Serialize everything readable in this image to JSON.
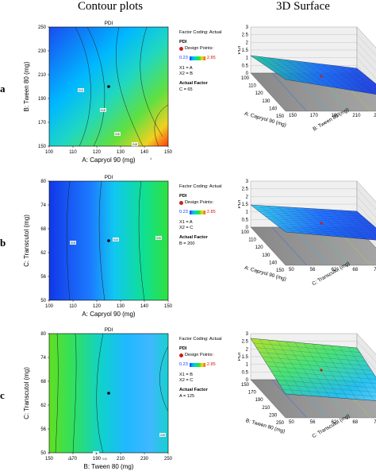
{
  "headers": {
    "left": "Contour plots",
    "right": "3D Surface"
  },
  "rows": [
    {
      "label": "a",
      "panel_title": "PDI",
      "info": {
        "coding": "Factor Coding: Actual",
        "response": "PDI",
        "design_points": "Design Points:",
        "cmin": "0.23",
        "cmax": "2.85",
        "x1": "X1 = A",
        "x2": "X2 = B",
        "actual_factor": "Actual Factor",
        "factor_value": "C = 65"
      },
      "xlabel": "A: Capryol 90 (mg)",
      "ylabel": "B: Tween 80 (mg)",
      "xticks": [
        "100",
        "110",
        "120",
        "130",
        "140",
        "150"
      ],
      "yticks": [
        "150",
        "170",
        "190",
        "210",
        "230",
        "250"
      ],
      "contour_labels": [
        "0.2",
        "0.4",
        "0.6",
        "0.8",
        "1",
        "1.2"
      ],
      "surf_zlabel": "PDI",
      "surf_zticks": [
        "0",
        "0.5",
        "1",
        "1.5",
        "2",
        "2.5",
        "3"
      ],
      "surf_x_label": "A: Capryol 90 (mg)",
      "surf_x_ticks": [
        "100",
        "110",
        "120",
        "130",
        "140",
        "150"
      ],
      "surf_y_label": "B: Tween 80 (mg)",
      "surf_y_ticks": [
        "150",
        "170",
        "190",
        "210",
        "230",
        "250"
      ]
    },
    {
      "label": "b",
      "panel_title": "PDI",
      "info": {
        "coding": "Factor Coding: Actual",
        "response": "PDI",
        "design_points": "Design Points:",
        "cmin": "0.23",
        "cmax": "2.85",
        "x1": "X1 = A",
        "x2": "X2 = C",
        "actual_factor": "Actual Factor",
        "factor_value": "B = 200"
      },
      "xlabel": "A: Capryol 90 (mg)",
      "ylabel": "C: Transcutol (mg)",
      "xticks": [
        "100",
        "110",
        "120",
        "130",
        "140",
        "150"
      ],
      "yticks": [
        "50",
        "56",
        "62",
        "68",
        "74",
        "80"
      ],
      "contour_labels": [
        "0.3",
        "0.4",
        "0.5"
      ],
      "surf_zlabel": "PDI",
      "surf_zticks": [
        "0",
        "0.5",
        "1",
        "1.5",
        "2",
        "2.5",
        "3"
      ],
      "surf_x_label": "A: Capryol 90 (mg)",
      "surf_x_ticks": [
        "100",
        "110",
        "120",
        "130",
        "140",
        "150"
      ],
      "surf_y_label": "C: Transcutol (mg)",
      "surf_y_ticks": [
        "50",
        "56",
        "62",
        "68",
        "74",
        "80"
      ]
    },
    {
      "label": "c",
      "panel_title": "PDI",
      "info": {
        "coding": "Factor Coding: Actual",
        "response": "PDI",
        "design_points": "Design Points:",
        "cmin": "0.23",
        "cmax": "2.85",
        "x1": "X1 = B",
        "x2": "X2 = C",
        "actual_factor": "Actual Factor",
        "factor_value": "A = 125"
      },
      "xlabel": "B: Tween 80 (mg)",
      "ylabel": "C: Transcutol (mg)",
      "xticks": [
        "150",
        "170",
        "190",
        "210",
        "230",
        "250"
      ],
      "yticks": [
        "50",
        "56",
        "62",
        "68",
        "74",
        "80"
      ],
      "contour_labels": [
        "1.5",
        "1",
        "0.5",
        "0.5"
      ],
      "surf_zlabel": "PDI",
      "surf_zticks": [
        "0",
        "0.5",
        "1",
        "1.5",
        "2",
        "2.5",
        "3"
      ],
      "surf_x_label": "B: Tween 80 (mg)",
      "surf_x_ticks": [
        "150",
        "170",
        "190",
        "210",
        "230",
        "250"
      ],
      "surf_y_label": "C: Transcutol (mg)",
      "surf_y_ticks": [
        "50",
        "56",
        "62",
        "68",
        "74",
        "80"
      ]
    }
  ],
  "colors": {
    "low": "#1a3cff",
    "mid": "#00c8e0",
    "green": "#30e030",
    "high": "#ff5010",
    "design_point": "#c8201c",
    "floor": "#808080"
  },
  "chart_data": [
    {
      "type": "heatmap",
      "title": "PDI",
      "xlabel": "A: Capryol 90 (mg)",
      "ylabel": "B: Tween 80 (mg)",
      "xlim": [
        100,
        150
      ],
      "ylim": [
        150,
        250
      ],
      "color_range": [
        0.23,
        2.85
      ],
      "contour_levels": [
        0.2,
        0.4,
        0.6,
        0.8,
        1,
        1.2
      ],
      "design_points": [
        [
          125,
          200
        ]
      ],
      "fixed_factor": "C = 65"
    },
    {
      "type": "heatmap",
      "title": "PDI",
      "xlabel": "A: Capryol 90 (mg)",
      "ylabel": "C: Transcutol (mg)",
      "xlim": [
        100,
        150
      ],
      "ylim": [
        50,
        80
      ],
      "color_range": [
        0.23,
        2.85
      ],
      "contour_levels": [
        0.3,
        0.4,
        0.5
      ],
      "design_points": [
        [
          125,
          65
        ]
      ],
      "fixed_factor": "B = 200"
    },
    {
      "type": "heatmap",
      "title": "PDI",
      "xlabel": "B: Tween 80 (mg)",
      "ylabel": "C: Transcutol (mg)",
      "xlim": [
        150,
        250
      ],
      "ylim": [
        50,
        80
      ],
      "color_range": [
        0.23,
        2.85
      ],
      "contour_levels": [
        1.5,
        1,
        0.5,
        0.5
      ],
      "design_points": [
        [
          200,
          65
        ]
      ],
      "fixed_factor": "A = 125"
    }
  ]
}
